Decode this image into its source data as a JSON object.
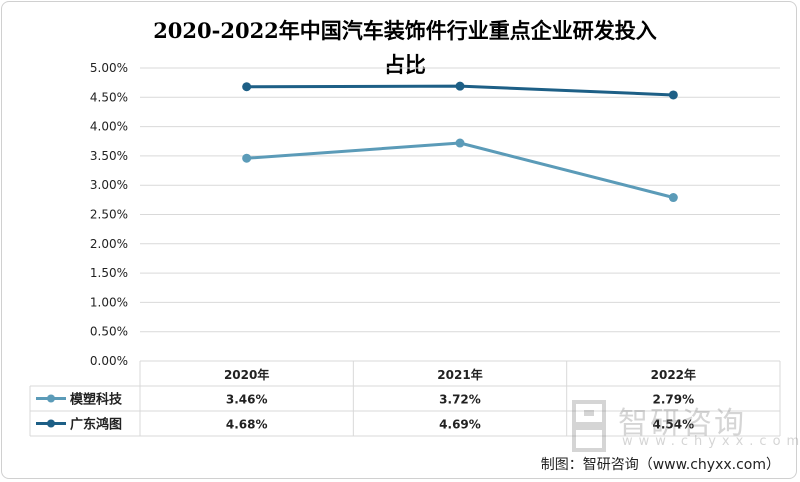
{
  "title_line1": "2020-2022年中国汽车装饰件行业重点企业研发投入",
  "title_line2": "占比",
  "footer": "制图：智研咨询（www.chyxx.com）",
  "watermark": {
    "name": "智研咨询",
    "url": "www.chyxx.com"
  },
  "colors": {
    "series1": "#5b9bb8",
    "series2": "#1d5f86",
    "grid": "#d9d9d9"
  },
  "chart_data": {
    "type": "line",
    "categories": [
      "2020年",
      "2021年",
      "2022年"
    ],
    "series": [
      {
        "name": "模塑科技",
        "values": [
          3.46,
          3.72,
          2.79
        ],
        "labels": [
          "3.46%",
          "3.72%",
          "2.79%"
        ]
      },
      {
        "name": "广东鸿图",
        "values": [
          4.68,
          4.69,
          4.54
        ],
        "labels": [
          "4.68%",
          "4.69%",
          "4.54%"
        ]
      }
    ],
    "yticks": [
      "0.00%",
      "0.50%",
      "1.00%",
      "1.50%",
      "2.00%",
      "2.50%",
      "3.00%",
      "3.50%",
      "4.00%",
      "4.50%",
      "5.00%"
    ],
    "ylim": [
      0,
      5
    ],
    "grid": true,
    "legend": "data-table"
  }
}
